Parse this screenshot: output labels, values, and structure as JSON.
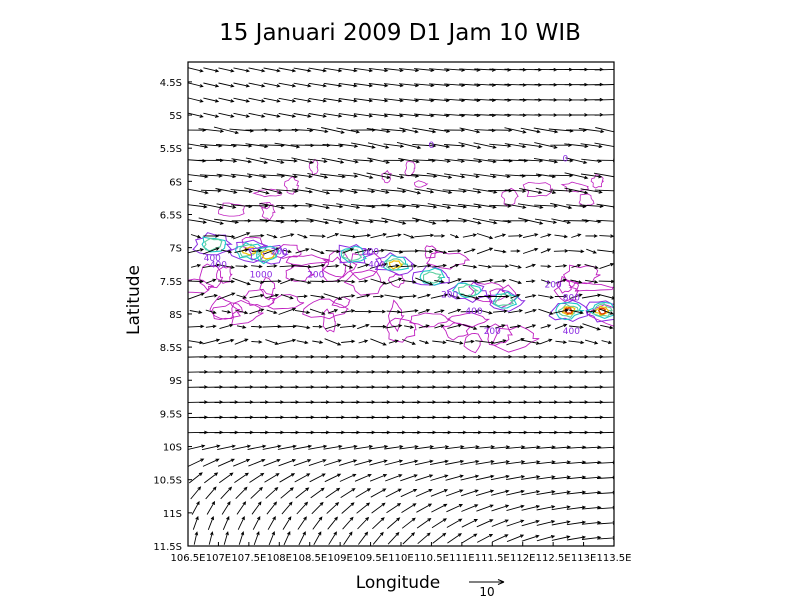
{
  "chart_data": {
    "type": "vector-contour map",
    "title": "15 Januari 2009 D1 Jam 10 WIB",
    "xlabel": "Longitude",
    "ylabel": "Latitude",
    "xlim": [
      106.5,
      113.5
    ],
    "ylim": [
      -11.5,
      -4.2
    ],
    "x_ticks": [
      "106.5E",
      "107E",
      "107.5E",
      "108E",
      "108.5E",
      "109E",
      "109.5E",
      "110E",
      "110.5E",
      "111E",
      "111.5E",
      "112E",
      "112.5E",
      "113E",
      "113.5E"
    ],
    "x_tick_values": [
      106.5,
      107,
      107.5,
      108,
      108.5,
      109,
      109.5,
      110,
      110.5,
      111,
      111.5,
      112,
      112.5,
      113,
      113.5
    ],
    "y_ticks": [
      "4.5S",
      "5S",
      "5.5S",
      "6S",
      "6.5S",
      "7S",
      "7.5S",
      "8S",
      "8.5S",
      "9S",
      "9.5S",
      "10S",
      "10.5S",
      "11S",
      "11.5S"
    ],
    "y_tick_values": [
      -4.5,
      -5,
      -5.5,
      -6,
      -6.5,
      -7,
      -7.5,
      -8,
      -8.5,
      -9,
      -9.5,
      -10,
      -10.5,
      -11,
      -11.5
    ],
    "reference_vector": {
      "label": "10",
      "magnitude": 10
    },
    "contour_labels": [
      {
        "text": "400",
        "lon": 106.9,
        "lat": -7.2
      },
      {
        "text": "400",
        "lon": 107.0,
        "lat": -7.3
      },
      {
        "text": "1000",
        "lon": 107.7,
        "lat": -7.45
      },
      {
        "text": "200",
        "lon": 108.0,
        "lat": -7.1
      },
      {
        "text": "200",
        "lon": 109.5,
        "lat": -7.1
      },
      {
        "text": "400",
        "lon": 109.6,
        "lat": -7.3
      },
      {
        "text": "200",
        "lon": 108.6,
        "lat": -7.45
      },
      {
        "text": "200",
        "lon": 110.8,
        "lat": -7.75
      },
      {
        "text": "400",
        "lon": 111.2,
        "lat": -8.0
      },
      {
        "text": "200",
        "lon": 111.5,
        "lat": -8.3
      },
      {
        "text": "200",
        "lon": 112.5,
        "lat": -7.6
      },
      {
        "text": "800",
        "lon": 112.8,
        "lat": -7.8
      },
      {
        "text": "400",
        "lon": 112.8,
        "lat": -8.3
      },
      {
        "text": "0",
        "lon": 110.5,
        "lat": -5.5
      },
      {
        "text": "0",
        "lon": 112.7,
        "lat": -5.7
      }
    ],
    "precip_cells": [
      {
        "lon": 106.9,
        "lat": -6.95,
        "level": 2
      },
      {
        "lon": 107.5,
        "lat": -7.05,
        "level": 3
      },
      {
        "lon": 107.8,
        "lat": -7.1,
        "level": 3
      },
      {
        "lon": 109.2,
        "lat": -7.1,
        "level": 2
      },
      {
        "lon": 109.9,
        "lat": -7.25,
        "level": 3
      },
      {
        "lon": 110.5,
        "lat": -7.45,
        "level": 2
      },
      {
        "lon": 111.1,
        "lat": -7.65,
        "level": 2
      },
      {
        "lon": 111.7,
        "lat": -7.8,
        "level": 2
      },
      {
        "lon": 112.75,
        "lat": -7.95,
        "level": 4
      },
      {
        "lon": 113.3,
        "lat": -7.95,
        "level": 4
      }
    ],
    "wind_field": {
      "summary": "westerly flow north of ~9.8S, veering to south-easterly/south flow in the south-west corner"
    },
    "colors": {
      "frame": "#000000",
      "vectors": "#000000",
      "low_contour": "#c020c0",
      "mid_contour": "#8a2be2",
      "high_contour": "#1ec8c8",
      "max_contour": "#f0c000",
      "core": "#e04000"
    }
  }
}
